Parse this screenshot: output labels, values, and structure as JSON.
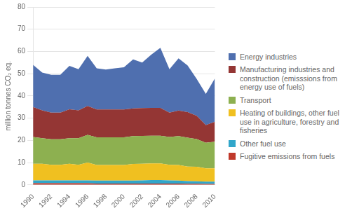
{
  "chart_data": {
    "type": "area",
    "stacked": true,
    "x": [
      1990,
      1991,
      1992,
      1993,
      1994,
      1995,
      1996,
      1997,
      1998,
      1999,
      2000,
      2001,
      2002,
      2003,
      2004,
      2005,
      2006,
      2007,
      2008,
      2009,
      2010
    ],
    "series": [
      {
        "name": "Fugitive emissions from fuels",
        "color": "#c0392b",
        "values": [
          0.7,
          0.7,
          0.7,
          0.7,
          0.7,
          0.7,
          0.7,
          0.6,
          0.6,
          0.6,
          0.6,
          0.6,
          0.6,
          0.6,
          0.6,
          0.6,
          0.6,
          0.5,
          0.5,
          0.4,
          0.4
        ]
      },
      {
        "name": "Other fuel use",
        "color": "#31a6ca",
        "values": [
          1.3,
          1.3,
          1.3,
          1.3,
          1.3,
          1.3,
          1.3,
          1.3,
          1.3,
          1.3,
          1.3,
          1.3,
          1.4,
          1.5,
          1.5,
          1.4,
          1.3,
          1.2,
          1.1,
          1.0,
          1.0
        ]
      },
      {
        "name": "Heating of buildings, other fuel\nuse in agriculture, forestry and\nfisheries",
        "color": "#f0c020",
        "values": [
          7.5,
          7.5,
          7.0,
          7.0,
          7.5,
          7.0,
          8.0,
          7.0,
          7.0,
          7.0,
          7.0,
          7.5,
          7.5,
          7.5,
          7.5,
          7.0,
          7.0,
          6.5,
          6.5,
          6.0,
          6.0
        ]
      },
      {
        "name": "Transport",
        "color": "#8db050",
        "values": [
          12.0,
          11.5,
          11.5,
          11.5,
          11.5,
          12.0,
          12.5,
          12.5,
          12.5,
          12.5,
          12.5,
          12.5,
          12.5,
          12.5,
          12.5,
          12.5,
          13.0,
          13.0,
          12.5,
          11.5,
          12.0
        ]
      },
      {
        "name": "Manufacturing industries and\nconstruction (emisssions from\nenergy use of fuels)",
        "color": "#943634",
        "values": [
          13.5,
          12.5,
          12.0,
          12.0,
          13.0,
          12.5,
          13.0,
          12.5,
          12.5,
          12.5,
          12.5,
          12.5,
          12.5,
          12.5,
          12.5,
          11.0,
          11.5,
          11.5,
          10.5,
          8.0,
          9.0
        ]
      },
      {
        "name": "Energy industries",
        "color": "#4f6faf",
        "values": [
          19.0,
          17.0,
          17.0,
          17.0,
          19.5,
          18.5,
          22.5,
          18.5,
          18.0,
          18.5,
          19.0,
          22.0,
          20.5,
          24.0,
          27.0,
          19.5,
          23.5,
          21.0,
          16.5,
          14.0,
          19.5
        ]
      }
    ],
    "xlim": [
      1990,
      2010
    ],
    "xticks": [
      1990,
      1992,
      1994,
      1996,
      1998,
      2000,
      2002,
      2004,
      2006,
      2008,
      2010
    ],
    "ylim": [
      0,
      80
    ],
    "yticks": [
      0,
      10,
      20,
      30,
      40,
      50,
      60,
      70,
      80
    ],
    "ylabel": "million tonnes CO₂ eq.",
    "grid": "y",
    "legend": "right"
  }
}
